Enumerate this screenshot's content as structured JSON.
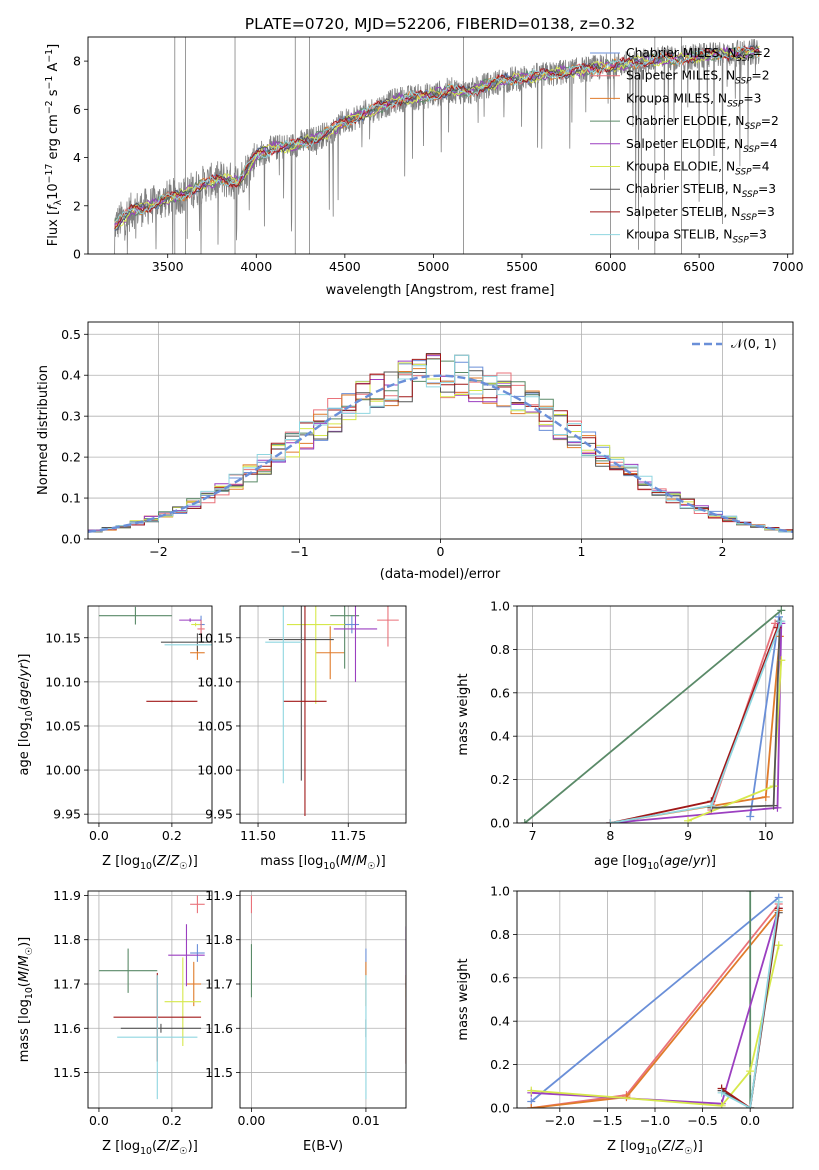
{
  "figure_title": "PLATE=0720, MJD=52206, FIBERID=0138, z=0.32",
  "colors": {
    "Chabrier MILES": "#6a8fd8",
    "Salpeter MILES": "#e9727a",
    "Kroupa MILES": "#e07b2b",
    "Chabrier ELODIE": "#5a8a68",
    "Salpeter ELODIE": "#9b3fc0",
    "Kroupa ELODIE": "#d6e84b",
    "Chabrier STELIB": "#555555",
    "Salpeter STELIB": "#a01818",
    "Kroupa STELIB": "#8fd6e0",
    "data": "#808080",
    "gauss": "#6a8fd8"
  },
  "chart_data": [
    {
      "type": "line",
      "title": "PLATE=0720, MJD=52206, FIBERID=0138, z=0.32",
      "xlabel": "wavelength [Angstrom, rest frame]",
      "ylabel_parts": [
        "Flux [f",
        "λ",
        "10",
        "−17",
        " erg cm",
        "−2",
        " s",
        "−1",
        " A",
        "−1",
        "]"
      ],
      "xlim": [
        3050,
        7030
      ],
      "ylim": [
        0,
        9
      ],
      "xticks": [
        3500,
        4000,
        4500,
        5000,
        5500,
        6000,
        6500,
        7000
      ],
      "yticks": [
        0,
        2,
        4,
        6,
        8
      ],
      "legend_position": "upper right",
      "legend": [
        {
          "name": "Chabrier MILES",
          "nssp": "2"
        },
        {
          "name": "Salpeter MILES",
          "nssp": "2"
        },
        {
          "name": "Kroupa MILES",
          "nssp": "3"
        },
        {
          "name": "Chabrier ELODIE",
          "nssp": "2"
        },
        {
          "name": "Salpeter ELODIE",
          "nssp": "4"
        },
        {
          "name": "Kroupa ELODIE",
          "nssp": "4"
        },
        {
          "name": "Chabrier STELIB",
          "nssp": "3"
        },
        {
          "name": "Salpeter STELIB",
          "nssp": "3"
        },
        {
          "name": "Kroupa STELIB",
          "nssp": "3"
        }
      ],
      "spectrum_continuum": [
        [
          3200,
          1.2
        ],
        [
          3300,
          1.8
        ],
        [
          3400,
          2.0
        ],
        [
          3500,
          2.3
        ],
        [
          3600,
          2.5
        ],
        [
          3700,
          2.9
        ],
        [
          3800,
          3.1
        ],
        [
          3900,
          3.0
        ],
        [
          4000,
          4.1
        ],
        [
          4100,
          4.4
        ],
        [
          4200,
          4.5
        ],
        [
          4300,
          4.7
        ],
        [
          4400,
          5.0
        ],
        [
          4500,
          5.5
        ],
        [
          4600,
          5.8
        ],
        [
          4700,
          6.1
        ],
        [
          4800,
          6.4
        ],
        [
          4900,
          6.5
        ],
        [
          5000,
          6.6
        ],
        [
          5100,
          6.8
        ],
        [
          5200,
          6.7
        ],
        [
          5300,
          7.0
        ],
        [
          5400,
          7.2
        ],
        [
          5500,
          7.3
        ],
        [
          5600,
          7.4
        ],
        [
          5700,
          7.5
        ],
        [
          5800,
          7.6
        ],
        [
          5900,
          7.7
        ],
        [
          6000,
          7.8
        ],
        [
          6100,
          7.9
        ],
        [
          6200,
          8.0
        ],
        [
          6300,
          8.1
        ],
        [
          6400,
          8.1
        ],
        [
          6500,
          8.2
        ],
        [
          6600,
          8.3
        ],
        [
          6700,
          8.3
        ],
        [
          6800,
          8.4
        ]
      ]
    },
    {
      "type": "bar",
      "xlabel": "(data-model)/error",
      "ylabel": "Normed distribution",
      "xlim": [
        -2.5,
        2.5
      ],
      "ylim": [
        0,
        0.53
      ],
      "xticks": [
        -2,
        -1,
        0,
        1,
        2
      ],
      "yticks": [
        0.0,
        0.1,
        0.2,
        0.3,
        0.4,
        0.5
      ],
      "legend": "𝒩(0, 1)",
      "legend_position": "upper right",
      "grid": true,
      "bin_width": 0.1
    },
    {
      "type": "scatter",
      "xlabel": "Z [log10(Z/Z☉)]",
      "ylabel": "age  [log10(age/yr)]",
      "xlim": [
        -0.03,
        0.31
      ],
      "ylim": [
        9.94,
        10.186
      ],
      "xticks": [
        0.0,
        0.2
      ],
      "yticks": [
        9.95,
        10.0,
        10.05,
        10.1,
        10.15
      ],
      "grid": true,
      "points": [
        {
          "series": "Chabrier MILES",
          "x": 0.28,
          "y": 10.165,
          "x_err": 0.01,
          "y_err": 0.01
        },
        {
          "series": "Salpeter MILES",
          "x": 0.28,
          "y": 10.16,
          "x_err": 0.01,
          "y_err": 0.01
        },
        {
          "series": "Kroupa MILES",
          "x": 0.27,
          "y": 10.133,
          "x_err": 0.02,
          "y_err": 0.008
        },
        {
          "series": "Chabrier ELODIE",
          "x": 0.1,
          "y": 10.175,
          "x_err": 0.1,
          "y_err": 0.01
        },
        {
          "series": "Salpeter ELODIE",
          "x": 0.25,
          "y": 10.17,
          "x_err": 0.03,
          "y_err": 0.002
        },
        {
          "series": "Kroupa ELODIE",
          "x": 0.265,
          "y": 10.165,
          "x_err": 0.012,
          "y_err": 0.002
        },
        {
          "series": "Chabrier STELIB",
          "x": 0.27,
          "y": 10.145,
          "x_err": 0.1,
          "y_err": 0.01
        },
        {
          "series": "Salpeter STELIB",
          "x": 0.2,
          "y": 10.078,
          "x_err": 0.07,
          "y_err": 0.001
        },
        {
          "series": "Kroupa STELIB",
          "x": 0.27,
          "y": 10.142,
          "x_err": 0.09,
          "y_err": 0.001
        }
      ]
    },
    {
      "type": "scatter",
      "xlabel": "mass [log10(M/M☉)]",
      "xlim": [
        11.45,
        11.91
      ],
      "ylim": [
        9.94,
        10.186
      ],
      "xticks": [
        11.5,
        11.75
      ],
      "yticks": [
        9.95,
        10.0,
        10.05,
        10.1,
        10.15
      ],
      "grid": true,
      "points": [
        {
          "series": "Chabrier MILES",
          "x": 11.76,
          "y": 10.165,
          "x_err": 0.02,
          "y_err": 0.01
        },
        {
          "series": "Salpeter MILES",
          "x": 11.86,
          "y": 10.17,
          "x_err": 0.03,
          "y_err": 0.03
        },
        {
          "series": "Kroupa MILES",
          "x": 11.7,
          "y": 10.133,
          "x_err": 0.04,
          "y_err": 0.03
        },
        {
          "series": "Chabrier ELODIE",
          "x": 11.74,
          "y": 10.175,
          "x_err": 0.04,
          "y_err": 0.06
        },
        {
          "series": "Salpeter ELODIE",
          "x": 11.77,
          "y": 10.16,
          "x_err": 0.06,
          "y_err": 0.06
        },
        {
          "series": "Kroupa ELODIE",
          "x": 11.66,
          "y": 10.165,
          "x_err": 0.08,
          "y_err": 0.09
        },
        {
          "series": "Chabrier STELIB",
          "x": 11.62,
          "y": 10.148,
          "x_err": 0.09,
          "y_err": 0.16
        },
        {
          "series": "Salpeter STELIB",
          "x": 11.63,
          "y": 10.078,
          "x_err": 0.06,
          "y_err": 0.13
        },
        {
          "series": "Kroupa STELIB",
          "x": 11.57,
          "y": 10.145,
          "x_err": 0.05,
          "y_err": 0.16
        }
      ]
    },
    {
      "type": "line",
      "xlabel": "age  [log10(age/yr)]",
      "ylabel": "mass weight",
      "xlim": [
        6.8,
        10.35
      ],
      "ylim": [
        0,
        1
      ],
      "xticks": [
        7,
        8,
        9,
        10
      ],
      "yticks": [
        0.0,
        0.2,
        0.4,
        0.6,
        0.8,
        1.0
      ],
      "grid": true,
      "series": [
        {
          "name": "Chabrier MILES",
          "x": [
            9.8,
            10.17
          ],
          "y": [
            0.03,
            0.95
          ]
        },
        {
          "name": "Salpeter MILES",
          "x": [
            9.3,
            10.12
          ],
          "y": [
            0.06,
            0.92
          ]
        },
        {
          "name": "Kroupa MILES",
          "x": [
            8.0,
            10.0,
            10.18
          ],
          "y": [
            0.0,
            0.12,
            0.86
          ]
        },
        {
          "name": "Chabrier ELODIE",
          "x": [
            6.9,
            10.2
          ],
          "y": [
            0.0,
            0.98
          ]
        },
        {
          "name": "Salpeter ELODIE",
          "x": [
            8.0,
            10.15,
            10.2
          ],
          "y": [
            0.0,
            0.07,
            0.92
          ]
        },
        {
          "name": "Kroupa ELODIE",
          "x": [
            9.0,
            10.1,
            10.2
          ],
          "y": [
            0.01,
            0.17,
            0.75
          ]
        },
        {
          "name": "Chabrier STELIB",
          "x": [
            9.3,
            10.1,
            10.18
          ],
          "y": [
            0.07,
            0.08,
            0.93
          ]
        },
        {
          "name": "Salpeter STELIB",
          "x": [
            8.0,
            9.3,
            10.15
          ],
          "y": [
            0.0,
            0.1,
            0.9
          ]
        },
        {
          "name": "Kroupa STELIB",
          "x": [
            8.0,
            9.3,
            10.2
          ],
          "y": [
            0.0,
            0.08,
            0.93
          ]
        }
      ]
    },
    {
      "type": "scatter",
      "xlabel": "Z [log10(Z/Z☉)]",
      "ylabel": "mass [log10(M/M☉)]",
      "xlim": [
        -0.03,
        0.31
      ],
      "ylim": [
        11.42,
        11.91
      ],
      "xticks": [
        0.0,
        0.2
      ],
      "yticks": [
        11.5,
        11.6,
        11.7,
        11.8,
        11.9
      ],
      "grid": true,
      "points": [
        {
          "series": "Chabrier MILES",
          "x": 0.27,
          "y": 11.77,
          "x_err": 0.02,
          "y_err": 0.02
        },
        {
          "series": "Salpeter MILES",
          "x": 0.27,
          "y": 11.88,
          "x_err": 0.02,
          "y_err": 0.02
        },
        {
          "series": "Kroupa MILES",
          "x": 0.26,
          "y": 11.7,
          "x_err": 0.02,
          "y_err": 0.05
        },
        {
          "series": "Chabrier ELODIE",
          "x": 0.08,
          "y": 11.73,
          "x_err": 0.08,
          "y_err": 0.05
        },
        {
          "series": "Salpeter ELODIE",
          "x": 0.24,
          "y": 11.765,
          "x_err": 0.05,
          "y_err": 0.07
        },
        {
          "series": "Kroupa ELODIE",
          "x": 0.23,
          "y": 11.66,
          "x_err": 0.05,
          "y_err": 0.1
        },
        {
          "series": "Chabrier STELIB",
          "x": 0.17,
          "y": 11.6,
          "x_err": 0.11,
          "y_err": 0.01
        },
        {
          "series": "Salpeter STELIB",
          "x": 0.16,
          "y": 11.625,
          "x_err": 0.12,
          "y_err": 0.1
        },
        {
          "series": "Kroupa STELIB",
          "x": 0.16,
          "y": 11.58,
          "x_err": 0.11,
          "y_err": 0.14
        }
      ]
    },
    {
      "type": "scatter",
      "xlabel": "E(B-V)",
      "xlim": [
        -0.001,
        0.0135
      ],
      "ylim": [
        11.42,
        11.91
      ],
      "xticks": [
        0.0,
        0.01
      ],
      "yticks": [
        11.5,
        11.6,
        11.7,
        11.8,
        11.9
      ],
      "grid": true,
      "points": [
        {
          "series": "Chabrier MILES",
          "x": 0.01,
          "y": 11.75,
          "y_err": 0.03
        },
        {
          "series": "Salpeter MILES",
          "x": 0.0,
          "y": 11.88,
          "y_err": 0.02
        },
        {
          "series": "Kroupa MILES",
          "x": 0.01,
          "y": 11.7,
          "y_err": 0.05
        },
        {
          "series": "Chabrier ELODIE",
          "x": 0.0,
          "y": 11.73,
          "y_err": 0.06
        },
        {
          "series": "Salpeter ELODIE",
          "x": 0.0135,
          "y": 11.76,
          "y_err": 0.07
        },
        {
          "series": "Kroupa ELODIE",
          "x": 0.0135,
          "y": 11.69,
          "y_err": 0.02
        },
        {
          "series": "Chabrier STELIB",
          "x": 0.01,
          "y": 11.6,
          "y_err": 0.02
        },
        {
          "series": "Salpeter STELIB",
          "x": 0.0135,
          "y": 11.62,
          "y_err": 0.1
        },
        {
          "series": "Kroupa STELIB",
          "x": 0.01,
          "y": 11.58,
          "y_err": 0.14
        }
      ]
    },
    {
      "type": "line",
      "xlabel": "Z [log10(Z/Z☉)]",
      "ylabel": "mass weight",
      "xlim": [
        -2.45,
        0.45
      ],
      "ylim": [
        0,
        1
      ],
      "xticks": [
        -2.0,
        -1.5,
        -1.0,
        -0.5,
        0.0
      ],
      "yticks": [
        0.0,
        0.2,
        0.4,
        0.6,
        0.8,
        1.0
      ],
      "grid": true,
      "series": [
        {
          "name": "Chabrier MILES",
          "x": [
            -2.3,
            0.3
          ],
          "y": [
            0.03,
            0.97
          ]
        },
        {
          "name": "Salpeter MILES",
          "x": [
            -2.3,
            -1.3,
            0.3
          ],
          "y": [
            0.0,
            0.06,
            0.94
          ]
        },
        {
          "name": "Kroupa MILES",
          "x": [
            -2.3,
            -1.3,
            0.3
          ],
          "y": [
            0.0,
            0.05,
            0.91
          ]
        },
        {
          "name": "Chabrier ELODIE",
          "x": [
            0.0,
            0.0
          ],
          "y": [
            0.0,
            1.0
          ]
        },
        {
          "name": "Salpeter ELODIE",
          "x": [
            -2.3,
            -0.3,
            0.3
          ],
          "y": [
            0.07,
            0.02,
            0.92
          ]
        },
        {
          "name": "Kroupa ELODIE",
          "x": [
            -2.3,
            -0.3,
            0.0,
            0.3
          ],
          "y": [
            0.08,
            0.01,
            0.17,
            0.75
          ]
        },
        {
          "name": "Chabrier STELIB",
          "x": [
            -0.3,
            0.0,
            0.3
          ],
          "y": [
            0.08,
            0.0,
            0.9
          ]
        },
        {
          "name": "Salpeter STELIB",
          "x": [
            -0.3,
            0.0,
            0.3
          ],
          "y": [
            0.09,
            0.0,
            0.92
          ]
        },
        {
          "name": "Kroupa STELIB",
          "x": [
            -0.3,
            0.0,
            0.3
          ],
          "y": [
            0.07,
            0.0,
            0.95
          ]
        }
      ]
    }
  ]
}
